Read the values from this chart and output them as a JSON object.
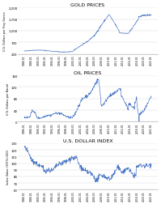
{
  "title1": "GOLD PRICES",
  "title2": "OIL PRICES",
  "title3": "U.S. DOLLAR INDEX",
  "ylabel1": "U.S. Dollars per Troy Ounce",
  "ylabel2": "U.S. Dollars per Barrel",
  "ylabel3": "Index Value (1973=100)",
  "line_color": "#4472C4",
  "bg_color": "#ffffff",
  "x_labels": [
    "1986-01",
    "1988-01",
    "1990-01",
    "1992-01",
    "1994-01",
    "1996-01",
    "1998-01",
    "2000-01",
    "2002-01",
    "2004-01",
    "2006-01",
    "2008-01",
    "2010-01",
    "2012-01",
    "2014-01",
    "2016-01",
    "2018-01",
    "2020-01",
    "2022-01"
  ],
  "gold_ylim": [
    200,
    2200
  ],
  "gold_yticks": [
    200,
    700,
    1200,
    1700,
    2200
  ],
  "oil_ylim": [
    0,
    160
  ],
  "oil_yticks": [
    0,
    40,
    80,
    120,
    160
  ],
  "usd_ylim": [
    60,
    130
  ],
  "usd_yticks": [
    60,
    70,
    80,
    90,
    100,
    110,
    120,
    130
  ]
}
